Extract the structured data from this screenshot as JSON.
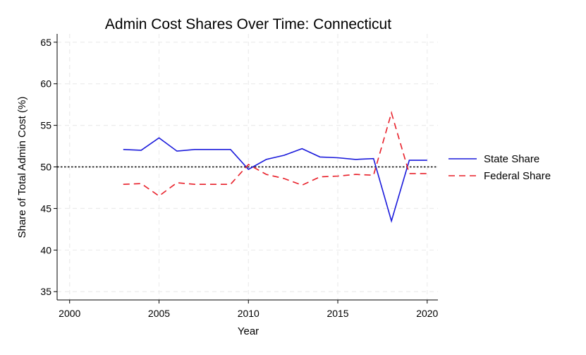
{
  "chart_data": {
    "type": "line",
    "title": "Admin Cost Shares Over Time: Connecticut",
    "xlabel": "Year",
    "ylabel": "Share of Total Admin Cost (%)",
    "xlim": [
      1999.3,
      2020.6
    ],
    "ylim": [
      34,
      66
    ],
    "xticks": [
      2000,
      2005,
      2010,
      2015,
      2020
    ],
    "yticks": [
      35,
      40,
      45,
      50,
      55,
      60,
      65
    ],
    "grid": true,
    "legend_position": "right",
    "reference_line": {
      "y": 50,
      "style": "dotted",
      "color": "#000000"
    },
    "x": [
      2003,
      2004,
      2005,
      2006,
      2007,
      2008,
      2009,
      2010,
      2011,
      2012,
      2013,
      2014,
      2015,
      2016,
      2017,
      2018,
      2019,
      2020
    ],
    "series": [
      {
        "name": "State Share",
        "color": "#1a1adb",
        "style": "solid",
        "values": [
          52.1,
          52.0,
          53.5,
          51.9,
          52.1,
          52.1,
          52.1,
          49.7,
          50.9,
          51.4,
          52.2,
          51.2,
          51.1,
          50.9,
          51.0,
          43.5,
          50.8,
          50.8
        ]
      },
      {
        "name": "Federal Share",
        "color": "#e8202a",
        "style": "dashed",
        "values": [
          47.9,
          48.0,
          46.5,
          48.1,
          47.9,
          47.9,
          47.9,
          50.3,
          49.1,
          48.6,
          47.8,
          48.8,
          48.9,
          49.1,
          49.0,
          56.5,
          49.2,
          49.2
        ]
      }
    ]
  }
}
